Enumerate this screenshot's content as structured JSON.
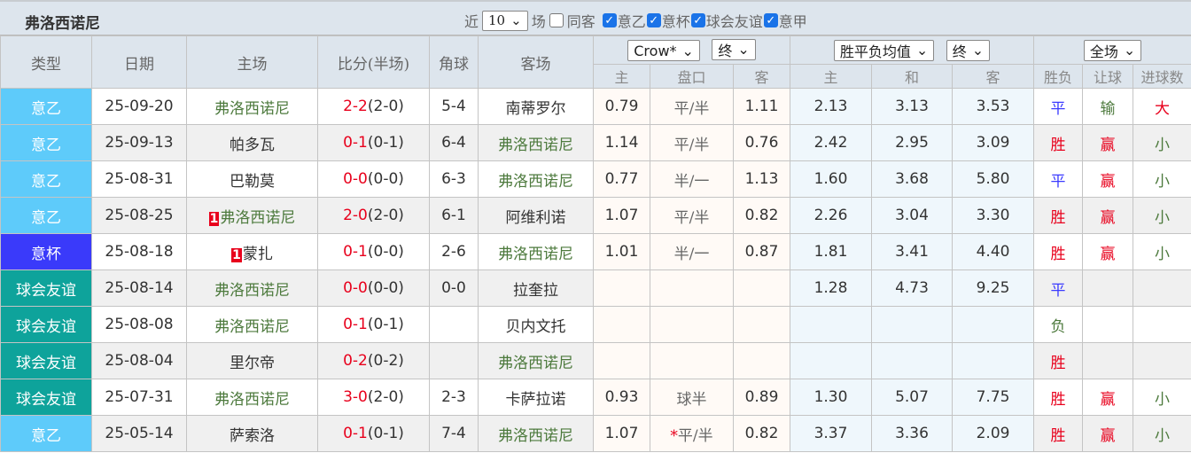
{
  "title": "弗洛西诺尼",
  "filters": {
    "recent_label": "近",
    "recent_value": "10",
    "games_label": "场",
    "same_venue": {
      "label": "同客",
      "checked": false
    },
    "leagues": [
      {
        "label": "意乙",
        "checked": true
      },
      {
        "label": "意杯",
        "checked": true
      },
      {
        "label": "球会友谊",
        "checked": true
      },
      {
        "label": "意甲",
        "checked": true
      }
    ]
  },
  "headers": {
    "type": "类型",
    "date": "日期",
    "home": "主场",
    "score": "比分(半场)",
    "corner": "角球",
    "away": "客场",
    "ah_company": "Crow*",
    "ah_stage": "终",
    "eu_company": "胜平负均值",
    "eu_stage": "终",
    "period": "全场",
    "ah_sub": [
      "主",
      "盘口",
      "客"
    ],
    "eu_sub": [
      "主",
      "和",
      "客"
    ],
    "res_sub": [
      "胜负",
      "让球",
      "进球数"
    ]
  },
  "colors": {
    "意乙": "#5ecbfa",
    "意杯": "#3a3afa",
    "球会友谊": "#0ea39b",
    "平": "#3a3aff",
    "胜": "#e8001c",
    "负": "#4d7a3d",
    "赢": "#e8001c",
    "输": "#4d7a3d",
    "大": "#e8001c",
    "小": "#4d7a3d"
  },
  "rows": [
    {
      "type": "意乙",
      "date": "25-09-20",
      "home": "弗洛西诺尼",
      "home_card": "",
      "score": "2-2",
      "half": "(2-0)",
      "corner": "5-4",
      "away": "南蒂罗尔",
      "away_card": "",
      "ah": [
        "0.79",
        "平/半",
        "1.11"
      ],
      "eu": [
        "2.13",
        "3.13",
        "3.53"
      ],
      "res": [
        "平",
        "输",
        "大"
      ]
    },
    {
      "type": "意乙",
      "date": "25-09-13",
      "home": "帕多瓦",
      "home_card": "",
      "score": "0-1",
      "half": "(0-1)",
      "corner": "6-4",
      "away": "弗洛西诺尼",
      "away_card": "",
      "ah": [
        "1.14",
        "平/半",
        "0.76"
      ],
      "eu": [
        "2.42",
        "2.95",
        "3.09"
      ],
      "res": [
        "胜",
        "赢",
        "小"
      ]
    },
    {
      "type": "意乙",
      "date": "25-08-31",
      "home": "巴勒莫",
      "home_card": "",
      "score": "0-0",
      "half": "(0-0)",
      "corner": "6-3",
      "away": "弗洛西诺尼",
      "away_card": "",
      "ah": [
        "0.77",
        "半/一",
        "1.13"
      ],
      "eu": [
        "1.60",
        "3.68",
        "5.80"
      ],
      "res": [
        "平",
        "赢",
        "小"
      ]
    },
    {
      "type": "意乙",
      "date": "25-08-25",
      "home": "弗洛西诺尼",
      "home_card": "1",
      "score": "2-0",
      "half": "(2-0)",
      "corner": "6-1",
      "away": "阿维利诺",
      "away_card": "",
      "ah": [
        "1.07",
        "平/半",
        "0.82"
      ],
      "eu": [
        "2.26",
        "3.04",
        "3.30"
      ],
      "res": [
        "胜",
        "赢",
        "小"
      ]
    },
    {
      "type": "意杯",
      "date": "25-08-18",
      "home": "蒙扎",
      "home_card": "1",
      "score": "0-1",
      "half": "(0-0)",
      "corner": "2-6",
      "away": "弗洛西诺尼",
      "away_card": "",
      "ah": [
        "1.01",
        "半/一",
        "0.87"
      ],
      "eu": [
        "1.81",
        "3.41",
        "4.40"
      ],
      "res": [
        "胜",
        "赢",
        "小"
      ]
    },
    {
      "type": "球会友谊",
      "date": "25-08-14",
      "home": "弗洛西诺尼",
      "home_card": "",
      "score": "0-0",
      "half": "(0-0)",
      "corner": "0-0",
      "away": "拉奎拉",
      "away_card": "",
      "ah": [
        "",
        "",
        ""
      ],
      "eu": [
        "1.28",
        "4.73",
        "9.25"
      ],
      "res": [
        "平",
        "",
        ""
      ]
    },
    {
      "type": "球会友谊",
      "date": "25-08-08",
      "home": "弗洛西诺尼",
      "home_card": "",
      "score": "0-1",
      "half": "(0-1)",
      "corner": "",
      "away": "贝内文托",
      "away_card": "",
      "ah": [
        "",
        "",
        ""
      ],
      "eu": [
        "",
        "",
        ""
      ],
      "res": [
        "负",
        "",
        ""
      ]
    },
    {
      "type": "球会友谊",
      "date": "25-08-04",
      "home": "里尔帝",
      "home_card": "",
      "score": "0-2",
      "half": "(0-2)",
      "corner": "",
      "away": "弗洛西诺尼",
      "away_card": "",
      "ah": [
        "",
        "",
        ""
      ],
      "eu": [
        "",
        "",
        ""
      ],
      "res": [
        "胜",
        "",
        ""
      ]
    },
    {
      "type": "球会友谊",
      "date": "25-07-31",
      "home": "弗洛西诺尼",
      "home_card": "",
      "score": "3-0",
      "half": "(2-0)",
      "corner": "2-3",
      "away": "卡萨拉诺",
      "away_card": "",
      "ah": [
        "0.93",
        "球半",
        "0.89"
      ],
      "eu": [
        "1.30",
        "5.07",
        "7.75"
      ],
      "res": [
        "胜",
        "赢",
        "小"
      ]
    },
    {
      "type": "意乙",
      "date": "25-05-14",
      "home": "萨索洛",
      "home_card": "",
      "score": "0-1",
      "half": "(0-1)",
      "corner": "7-4",
      "away": "弗洛西诺尼",
      "away_card": "",
      "ah": [
        "1.07",
        "*平/半",
        "0.82"
      ],
      "eu": [
        "3.37",
        "3.36",
        "2.09"
      ],
      "res": [
        "胜",
        "赢",
        "小"
      ]
    }
  ]
}
